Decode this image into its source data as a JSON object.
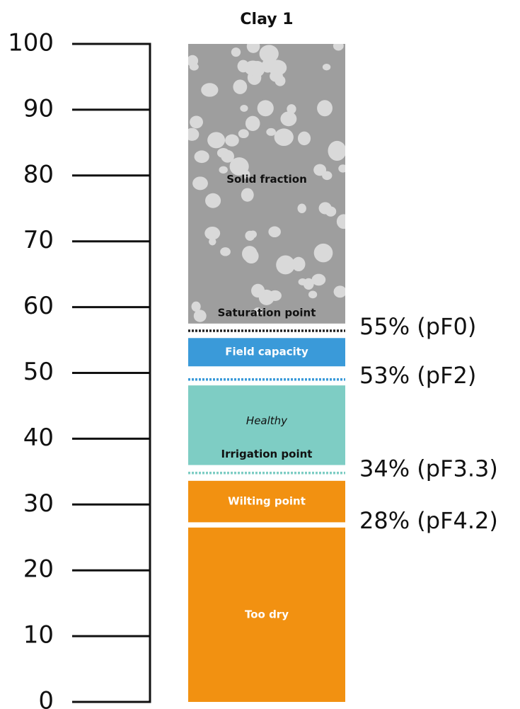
{
  "chart_data": {
    "type": "soil-column",
    "title": "Clay 1",
    "ylim": [
      0,
      100
    ],
    "yticks": [
      0,
      10,
      20,
      30,
      40,
      50,
      60,
      70,
      80,
      90,
      100
    ],
    "zones": [
      {
        "range": [
          57.5,
          100
        ],
        "color": "#9e9e9e",
        "pattern": "particles",
        "labels": [
          {
            "text": "Solid fraction",
            "style": "bold"
          },
          {
            "text": "Saturation point",
            "style": "bold"
          }
        ]
      },
      {
        "range": [
          51,
          55.3
        ],
        "color": "#3a9ad9",
        "labels": [
          {
            "text": "Field capacity",
            "style": "bold-white"
          }
        ]
      },
      {
        "range": [
          36,
          48.1
        ],
        "color": "#7ecdc4",
        "labels": [
          {
            "text": "Healthy",
            "style": "italic"
          },
          {
            "text": "Irrigation point",
            "style": "bold"
          }
        ]
      },
      {
        "range": [
          27.3,
          33.6
        ],
        "color": "#f29111",
        "labels": [
          {
            "text": "Wilting point",
            "style": "bold-white"
          }
        ]
      },
      {
        "range": [
          0,
          26.5
        ],
        "color": "#f29111",
        "labels": [
          {
            "text": "Too dry",
            "style": "bold-white"
          }
        ]
      }
    ],
    "markers": [
      {
        "value": 56.4,
        "color": "#222222",
        "annotation": "55% (pF0)"
      },
      {
        "value": 49,
        "color": "#3a9ad9",
        "annotation": "53% (pF2)"
      },
      {
        "value": 34.8,
        "color": "#7ecdc4",
        "annotation": "34% (pF3.3)"
      },
      {
        "value": 26.9,
        "color": "#ffffff",
        "annotation": "28% (pF4.2)"
      }
    ]
  }
}
